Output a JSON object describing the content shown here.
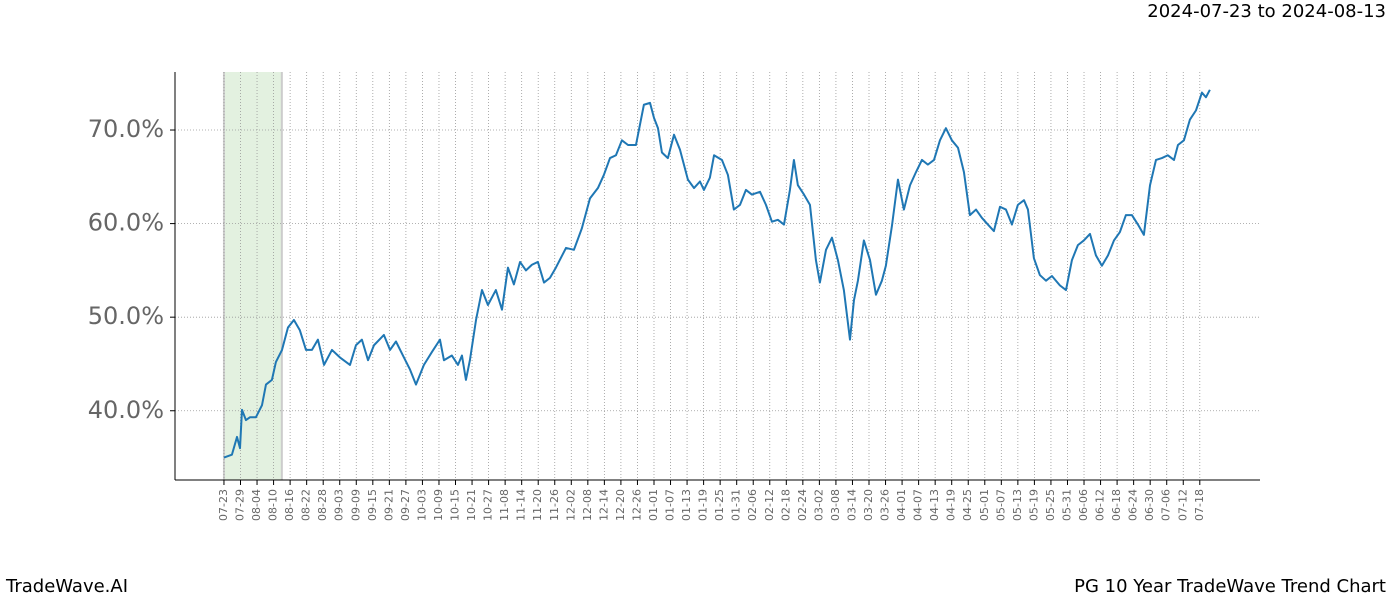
{
  "header": {
    "date_range": "2024-07-23 to 2024-08-13"
  },
  "footer": {
    "brand": "TradeWave.AI",
    "chart_name": "PG 10 Year TradeWave Trend Chart"
  },
  "chart_data": {
    "type": "line",
    "color": "#1f77b4",
    "grid": true,
    "highlight": {
      "range": [
        0,
        3.5
      ],
      "color": "#e3f1e0"
    },
    "xlim": [
      -2.96,
      62.64
    ],
    "ylim": [
      32.6,
      76.2
    ],
    "yticks": [
      {
        "value": 40,
        "label": "40.0%"
      },
      {
        "value": 50,
        "label": "50.0%"
      },
      {
        "value": 60,
        "label": "60.0%"
      },
      {
        "value": 70,
        "label": "70.0%"
      }
    ],
    "xticks": [
      {
        "value": 0,
        "label": "07-23"
      },
      {
        "value": 1,
        "label": "07-29"
      },
      {
        "value": 2,
        "label": "08-04"
      },
      {
        "value": 3,
        "label": "08-10"
      },
      {
        "value": 4,
        "label": "08-16"
      },
      {
        "value": 5,
        "label": "08-22"
      },
      {
        "value": 6,
        "label": "08-28"
      },
      {
        "value": 7,
        "label": "09-03"
      },
      {
        "value": 8,
        "label": "09-09"
      },
      {
        "value": 9,
        "label": "09-15"
      },
      {
        "value": 10,
        "label": "09-21"
      },
      {
        "value": 11,
        "label": "09-27"
      },
      {
        "value": 12,
        "label": "10-03"
      },
      {
        "value": 13,
        "label": "10-09"
      },
      {
        "value": 14,
        "label": "10-15"
      },
      {
        "value": 15,
        "label": "10-21"
      },
      {
        "value": 16,
        "label": "10-27"
      },
      {
        "value": 17,
        "label": "11-08"
      },
      {
        "value": 18,
        "label": "11-14"
      },
      {
        "value": 19,
        "label": "11-20"
      },
      {
        "value": 20,
        "label": "11-26"
      },
      {
        "value": 21,
        "label": "12-02"
      },
      {
        "value": 22,
        "label": "12-08"
      },
      {
        "value": 23,
        "label": "12-14"
      },
      {
        "value": 24,
        "label": "12-20"
      },
      {
        "value": 25,
        "label": "12-26"
      },
      {
        "value": 26,
        "label": "01-01"
      },
      {
        "value": 27,
        "label": "01-07"
      },
      {
        "value": 28,
        "label": "01-13"
      },
      {
        "value": 29,
        "label": "01-19"
      },
      {
        "value": 30,
        "label": "01-25"
      },
      {
        "value": 31,
        "label": "01-31"
      },
      {
        "value": 32,
        "label": "02-06"
      },
      {
        "value": 33,
        "label": "02-12"
      },
      {
        "value": 34,
        "label": "02-18"
      },
      {
        "value": 35,
        "label": "02-24"
      },
      {
        "value": 36,
        "label": "03-02"
      },
      {
        "value": 37,
        "label": "03-08"
      },
      {
        "value": 38,
        "label": "03-14"
      },
      {
        "value": 39,
        "label": "03-20"
      },
      {
        "value": 40,
        "label": "03-26"
      },
      {
        "value": 41,
        "label": "04-01"
      },
      {
        "value": 42,
        "label": "04-07"
      },
      {
        "value": 43,
        "label": "04-13"
      },
      {
        "value": 44,
        "label": "04-19"
      },
      {
        "value": 45,
        "label": "04-25"
      },
      {
        "value": 46,
        "label": "05-01"
      },
      {
        "value": 47,
        "label": "05-07"
      },
      {
        "value": 48,
        "label": "05-13"
      },
      {
        "value": 49,
        "label": "05-19"
      },
      {
        "value": 50,
        "label": "05-25"
      },
      {
        "value": 51,
        "label": "05-31"
      },
      {
        "value": 52,
        "label": "06-06"
      },
      {
        "value": 53,
        "label": "06-12"
      },
      {
        "value": 54,
        "label": "06-18"
      },
      {
        "value": 55,
        "label": "06-24"
      },
      {
        "value": 56,
        "label": "06-30"
      },
      {
        "value": 57,
        "label": "07-06"
      },
      {
        "value": 58,
        "label": "07-12"
      },
      {
        "value": 59,
        "label": "07-18"
      }
    ],
    "x": [
      0,
      0.48,
      0.79,
      0.97,
      1.09,
      1.33,
      1.57,
      1.93,
      2.3,
      2.54,
      2.9,
      3.14,
      3.51,
      3.87,
      4.23,
      4.59,
      4.96,
      5.32,
      5.68,
      6.05,
      6.53,
      7.01,
      7.62,
      7.98,
      8.34,
      8.71,
      9.07,
      9.67,
      10.04,
      10.4,
      10.88,
      11.25,
      11.61,
      12.09,
      12.58,
      13.06,
      13.3,
      13.78,
      14.15,
      14.39,
      14.63,
      14.87,
      15.24,
      15.6,
      15.96,
      16.44,
      16.81,
      17.17,
      17.53,
      17.9,
      18.26,
      18.62,
      18.98,
      19.35,
      19.71,
      20.07,
      20.68,
      21.16,
      21.64,
      22.13,
      22.61,
      22.97,
      23.34,
      23.7,
      24.06,
      24.43,
      24.91,
      25.39,
      25.76,
      26.0,
      26.24,
      26.48,
      26.84,
      27.21,
      27.57,
      28.05,
      28.42,
      28.78,
      29.02,
      29.38,
      29.63,
      30.11,
      30.47,
      30.83,
      31.2,
      31.56,
      31.92,
      32.41,
      32.77,
      33.13,
      33.49,
      33.86,
      34.22,
      34.46,
      34.7,
      35.07,
      35.43,
      35.79,
      36.03,
      36.4,
      36.76,
      37.12,
      37.48,
      37.85,
      38.09,
      38.33,
      38.69,
      39.06,
      39.42,
      39.78,
      40.02,
      40.39,
      40.75,
      41.11,
      41.48,
      41.84,
      42.2,
      42.56,
      42.93,
      43.29,
      43.65,
      44.01,
      44.38,
      44.74,
      45.1,
      45.47,
      45.83,
      46.19,
      46.55,
      46.92,
      47.28,
      47.64,
      48.0,
      48.37,
      48.61,
      48.97,
      49.33,
      49.7,
      50.06,
      50.54,
      50.91,
      51.27,
      51.63,
      51.99,
      52.36,
      52.72,
      53.08,
      53.45,
      53.81,
      54.17,
      54.53,
      54.9,
      55.26,
      55.62,
      55.99,
      56.35,
      56.71,
      57.07,
      57.44,
      57.68,
      58.04,
      58.4,
      58.77,
      59.13,
      59.37,
      59.61
    ],
    "values": [
      35.0,
      35.3,
      37.2,
      36.0,
      40.1,
      39.0,
      39.3,
      39.3,
      40.6,
      42.8,
      43.3,
      45.2,
      46.5,
      48.9,
      49.7,
      48.6,
      46.5,
      46.5,
      47.6,
      44.9,
      46.5,
      45.7,
      44.9,
      47.0,
      47.6,
      45.4,
      47.0,
      48.1,
      46.5,
      47.4,
      45.7,
      44.4,
      42.8,
      44.9,
      46.3,
      47.6,
      45.4,
      45.9,
      44.9,
      45.9,
      43.3,
      45.4,
      49.7,
      52.9,
      51.3,
      52.9,
      50.8,
      55.3,
      53.5,
      55.9,
      55.0,
      55.6,
      55.9,
      53.7,
      54.2,
      55.3,
      57.4,
      57.2,
      59.5,
      62.7,
      63.8,
      65.2,
      67.0,
      67.3,
      68.9,
      68.4,
      68.4,
      72.7,
      72.9,
      71.3,
      70.2,
      67.6,
      67.0,
      69.5,
      67.9,
      64.7,
      63.8,
      64.5,
      63.6,
      64.9,
      67.3,
      66.8,
      65.2,
      61.5,
      62.0,
      63.6,
      63.1,
      63.4,
      62.0,
      60.2,
      60.4,
      59.9,
      63.6,
      66.8,
      64.1,
      63.1,
      62.0,
      56.1,
      53.7,
      57.2,
      58.5,
      56.1,
      52.9,
      47.6,
      51.8,
      53.9,
      58.2,
      56.1,
      52.4,
      53.9,
      55.5,
      59.8,
      64.7,
      61.5,
      64.1,
      65.5,
      66.8,
      66.3,
      66.8,
      68.9,
      70.2,
      68.9,
      68.1,
      65.5,
      60.9,
      61.5,
      60.6,
      59.9,
      59.2,
      61.8,
      61.5,
      59.9,
      62.0,
      62.5,
      61.5,
      56.3,
      54.5,
      53.9,
      54.4,
      53.4,
      52.9,
      56.1,
      57.7,
      58.2,
      58.9,
      56.6,
      55.5,
      56.6,
      58.2,
      59.1,
      60.9,
      60.9,
      59.9,
      58.8,
      64.1,
      66.8,
      67.0,
      67.3,
      66.8,
      68.4,
      68.9,
      71.1,
      72.1,
      74.0,
      73.5,
      74.3
    ]
  }
}
